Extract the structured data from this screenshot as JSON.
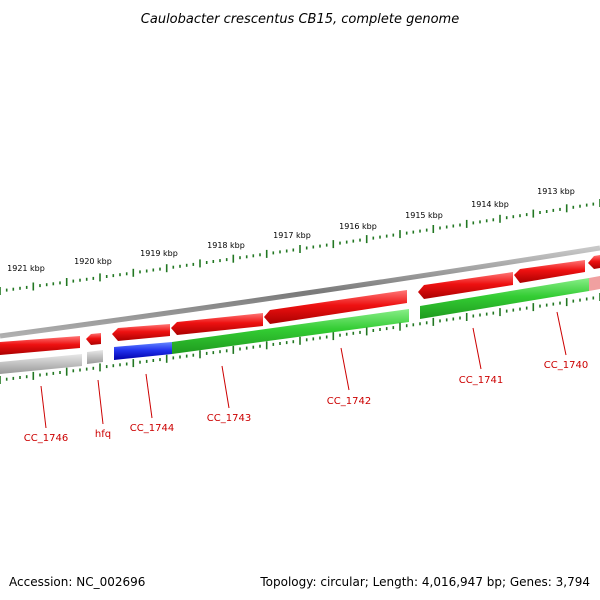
{
  "title": "Caulobacter crescentus CB15, complete genome",
  "footer": {
    "accession": "Accession: NC_002696",
    "topology": "Topology: circular; Length: 4,016,947 bp; Genes: 3,794"
  },
  "scale": {
    "unit": "kbp",
    "labels": [
      "1921 kbp",
      "1920 kbp",
      "1919 kbp",
      "1918 kbp",
      "1917 kbp",
      "1916 kbp",
      "1915 kbp",
      "1914 kbp",
      "1913 kbp"
    ]
  },
  "colors": {
    "forward_gene": "#ee1111",
    "reverse_gene_green": "#33cc33",
    "reverse_gene_blue": "#1a1aee",
    "reverse_gene_grey": "#b8b8b8",
    "backbone": "#8a8a8a",
    "tick": "#227722",
    "label": "#cc0000"
  },
  "genes": [
    {
      "name": "CC_1746",
      "strand": "reverse",
      "color": "grey"
    },
    {
      "name": "hfq",
      "strand": "reverse",
      "color": "grey"
    },
    {
      "name": "CC_1744",
      "strand": "reverse",
      "color": "blue"
    },
    {
      "name": "CC_1743",
      "strand": "reverse",
      "color": "green"
    },
    {
      "name": "CC_1742",
      "strand": "reverse",
      "color": "green"
    },
    {
      "name": "CC_1741",
      "strand": "reverse",
      "color": "green"
    },
    {
      "name": "CC_1740",
      "strand": "reverse",
      "color": "green"
    }
  ]
}
